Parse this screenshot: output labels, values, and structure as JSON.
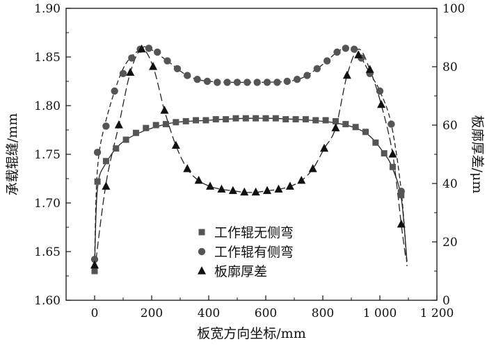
{
  "chart_data": {
    "type": "scatter",
    "title": "",
    "xlabel": "板宽方向坐标/mm",
    "ylabel_left": "承载辊缝/mm",
    "ylabel_right": "板廓厚差/μm",
    "xlim": [
      -100,
      1200
    ],
    "xticks": [
      0,
      200,
      400,
      600,
      800,
      1000,
      1200
    ],
    "xtick_labels": [
      "0",
      "200",
      "400",
      "600",
      "800",
      "1 000",
      "1 200"
    ],
    "ylim_left": [
      1.6,
      1.9
    ],
    "yticks_left": [
      "1.60",
      "1.65",
      "1.70",
      "1.75",
      "1.80",
      "1.85",
      "1.90"
    ],
    "ylim_right": [
      0,
      100
    ],
    "yticks_right": [
      "0",
      "20",
      "40",
      "60",
      "80",
      "100"
    ],
    "grid": false,
    "legend_position": "bottom-center",
    "series": [
      {
        "name": "工作辊无侧弯",
        "marker": "square",
        "axis": "left",
        "line_style": "solid",
        "color": "#555555",
        "x": [
          0,
          10,
          40,
          75,
          110,
          145,
          180,
          215,
          250,
          285,
          320,
          355,
          390,
          425,
          460,
          495,
          530,
          565,
          600,
          635,
          670,
          705,
          740,
          775,
          810,
          845,
          880,
          915,
          950,
          985,
          1015,
          1045,
          1075
        ],
        "values": [
          1.63,
          1.722,
          1.743,
          1.756,
          1.765,
          1.772,
          1.777,
          1.78,
          1.781,
          1.783,
          1.784,
          1.785,
          1.785,
          1.786,
          1.786,
          1.787,
          1.787,
          1.787,
          1.787,
          1.787,
          1.786,
          1.786,
          1.786,
          1.785,
          1.785,
          1.784,
          1.781,
          1.778,
          1.773,
          1.762,
          1.751,
          1.737,
          1.708
        ],
        "curve_x": [
          0,
          10,
          40,
          110,
          250,
          400,
          550,
          700,
          850,
          950,
          1015,
          1045,
          1075,
          1095
        ],
        "curve": [
          1.635,
          1.715,
          1.741,
          1.765,
          1.781,
          1.785,
          1.787,
          1.786,
          1.782,
          1.772,
          1.751,
          1.735,
          1.705,
          1.64
        ]
      },
      {
        "name": "工作辊有侧弯",
        "marker": "circle",
        "axis": "left",
        "line_style": "dashed",
        "color": "#555555",
        "x": [
          0,
          10,
          40,
          70,
          100,
          130,
          160,
          190,
          220,
          255,
          290,
          325,
          360,
          395,
          430,
          465,
          500,
          535,
          570,
          605,
          640,
          675,
          710,
          745,
          780,
          815,
          850,
          880,
          910,
          935,
          965,
          1000,
          1040,
          1075
        ],
        "values": [
          1.642,
          1.752,
          1.779,
          1.815,
          1.833,
          1.849,
          1.858,
          1.859,
          1.855,
          1.846,
          1.838,
          1.831,
          1.827,
          1.825,
          1.824,
          1.824,
          1.824,
          1.824,
          1.824,
          1.824,
          1.824,
          1.825,
          1.827,
          1.831,
          1.838,
          1.846,
          1.855,
          1.859,
          1.858,
          1.849,
          1.833,
          1.815,
          1.781,
          1.712
        ],
        "curve_x": [
          0,
          10,
          40,
          100,
          160,
          190,
          255,
          325,
          400,
          550,
          700,
          780,
          850,
          880,
          910,
          935,
          965,
          1000,
          1040,
          1075,
          1095
        ],
        "curve": [
          1.643,
          1.735,
          1.785,
          1.838,
          1.858,
          1.859,
          1.846,
          1.831,
          1.825,
          1.824,
          1.826,
          1.838,
          1.855,
          1.859,
          1.858,
          1.849,
          1.833,
          1.815,
          1.781,
          1.712,
          1.635
        ]
      },
      {
        "name": "板廓厚差",
        "marker": "triangle",
        "axis": "right",
        "line_style": "long-dash",
        "color": "#111111",
        "x": [
          0,
          40,
          85,
          125,
          165,
          205,
          245,
          285,
          325,
          365,
          405,
          445,
          485,
          525,
          565,
          605,
          645,
          685,
          725,
          765,
          805,
          845,
          885,
          925,
          965,
          1005,
          1045,
          1075
        ],
        "values": [
          12,
          39,
          60,
          78,
          86,
          80,
          65,
          53,
          45,
          41,
          39,
          38,
          37.5,
          37,
          37,
          37.5,
          38,
          39,
          41,
          45,
          52,
          59,
          77,
          84,
          79,
          67,
          50,
          26
        ],
        "curve_x": [
          0,
          40,
          85,
          125,
          165,
          205,
          245,
          285,
          325,
          365,
          405,
          445,
          485,
          525,
          565,
          605,
          645,
          685,
          725,
          765,
          805,
          845,
          885,
          925,
          965,
          1005,
          1045,
          1075,
          1090
        ],
        "curve": [
          10,
          40,
          60,
          78,
          86,
          80,
          65,
          53,
          45,
          41,
          39,
          38,
          37.5,
          37,
          37,
          37.5,
          38,
          39,
          41,
          45,
          52,
          59,
          77,
          86,
          79,
          67,
          50,
          26,
          15
        ]
      }
    ]
  }
}
